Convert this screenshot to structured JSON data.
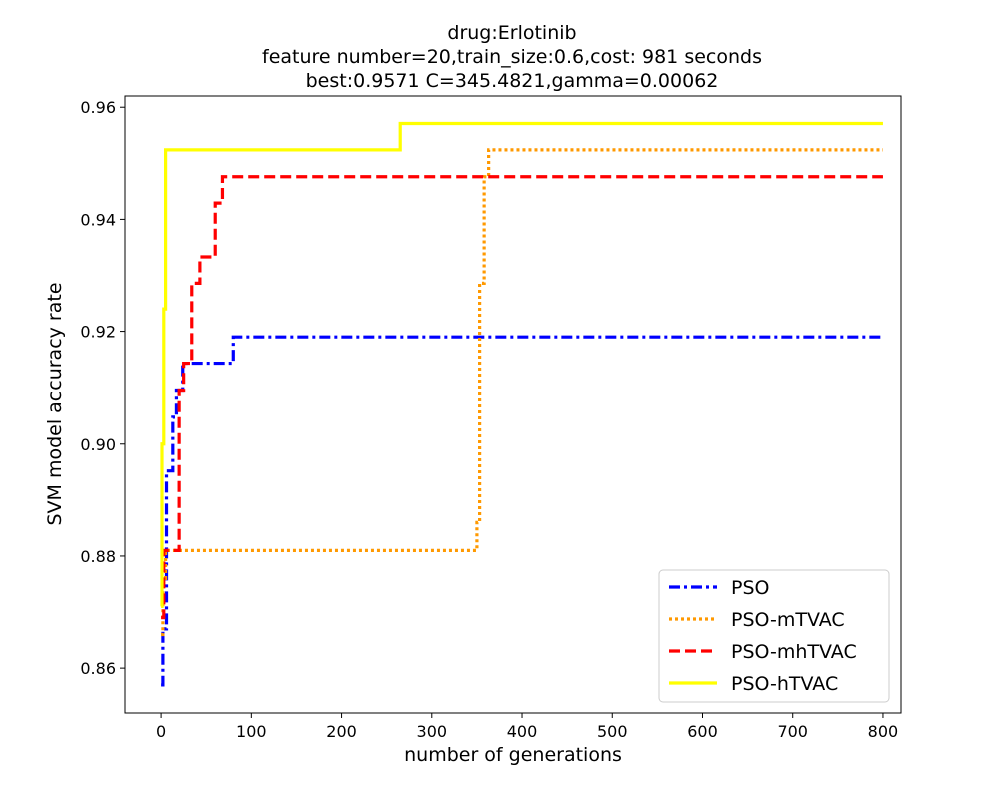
{
  "chart_data": {
    "type": "line",
    "title_lines": [
      "drug:Erlotinib",
      "feature number=20,train_size:0.6,cost: 981 seconds",
      "best:0.9571  C=345.4821,gamma=0.00062"
    ],
    "xlabel": "number of generations",
    "ylabel": "SVM model accuracy rate",
    "xlim": [
      -40,
      820
    ],
    "ylim": [
      0.852,
      0.962
    ],
    "xticks": [
      0,
      100,
      200,
      300,
      400,
      500,
      600,
      700,
      800
    ],
    "xtick_labels": [
      "0",
      "100",
      "200",
      "300",
      "400",
      "500",
      "600",
      "700",
      "800"
    ],
    "yticks": [
      0.86,
      0.88,
      0.9,
      0.92,
      0.94,
      0.96
    ],
    "ytick_labels": [
      "0.86",
      "0.88",
      "0.90",
      "0.92",
      "0.94",
      "0.96"
    ],
    "grid": false,
    "legend_position": "lower-right",
    "series": [
      {
        "name": "PSO",
        "color": "#0000ff",
        "dash": "dashdot",
        "x": [
          0,
          2,
          2,
          6,
          6,
          9,
          9,
          13,
          13,
          17,
          17,
          24,
          24,
          80,
          80,
          800
        ],
        "y": [
          0.857,
          0.857,
          0.867,
          0.867,
          0.8952,
          0.8952,
          0.8952,
          0.8952,
          0.9048,
          0.9048,
          0.9095,
          0.9095,
          0.9143,
          0.9143,
          0.919,
          0.919
        ]
      },
      {
        "name": "PSO-mTVAC",
        "color": "#ff9900",
        "dash": "dotted",
        "x": [
          0,
          2,
          2,
          5,
          5,
          350,
          350,
          353,
          353,
          358,
          358,
          363,
          363,
          800
        ],
        "y": [
          0.866,
          0.866,
          0.876,
          0.876,
          0.881,
          0.881,
          0.886,
          0.886,
          0.9286,
          0.9286,
          0.9476,
          0.9476,
          0.9524,
          0.9524
        ]
      },
      {
        "name": "PSO-mhTVAC",
        "color": "#ff0000",
        "dash": "dashed",
        "x": [
          0,
          3,
          3,
          20,
          20,
          25,
          25,
          34,
          34,
          43,
          43,
          60,
          60,
          68,
          68,
          800
        ],
        "y": [
          0.869,
          0.869,
          0.881,
          0.881,
          0.9095,
          0.9095,
          0.9143,
          0.9143,
          0.9286,
          0.9286,
          0.9333,
          0.9333,
          0.9429,
          0.9429,
          0.9476,
          0.9476
        ]
      },
      {
        "name": "PSO-hTVAC",
        "color": "#ffff00",
        "dash": "solid",
        "x": [
          0,
          1,
          1,
          3,
          3,
          5,
          5,
          265,
          265,
          800
        ],
        "y": [
          0.871,
          0.871,
          0.9,
          0.9,
          0.924,
          0.924,
          0.9524,
          0.9524,
          0.9571,
          0.9571
        ]
      }
    ]
  }
}
